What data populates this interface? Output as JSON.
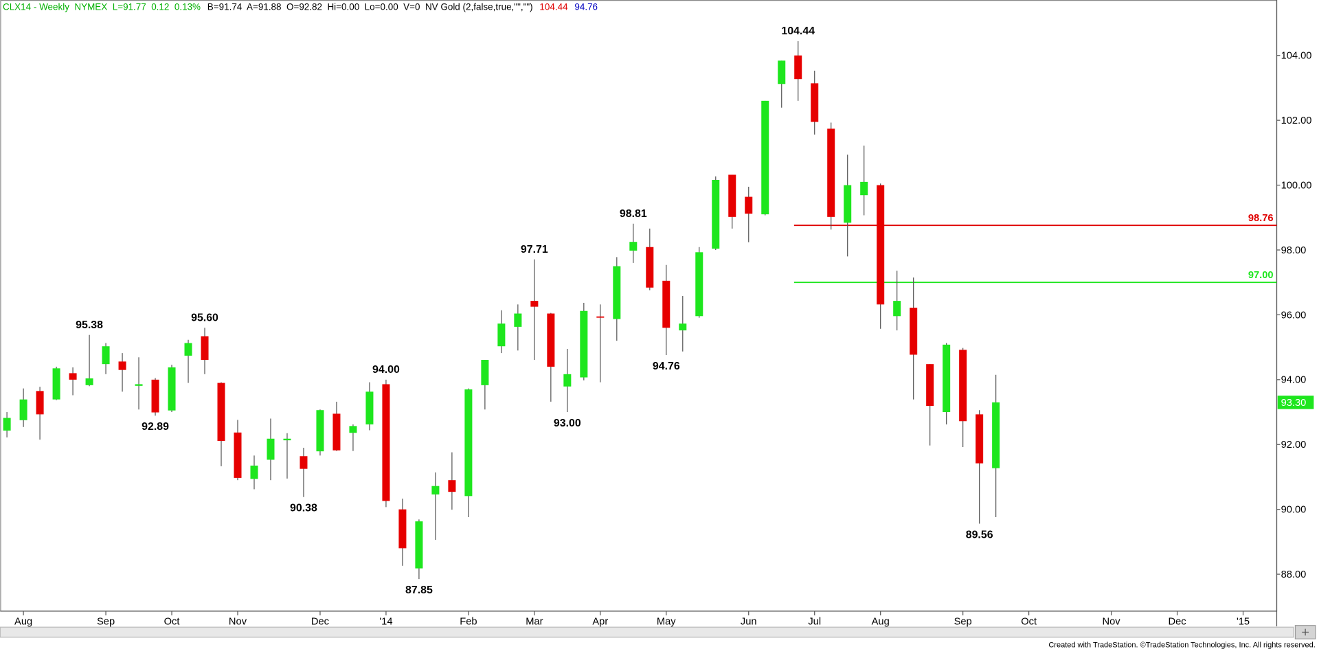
{
  "chart_data": {
    "type": "candlestick",
    "header": [
      {
        "text": "CLX14 - Weekly  NYMEX  L=91.77  0.12  0.13%",
        "color": "#00b000"
      },
      {
        "text": "B=91.74  A=91.88  O=92.82  Hi=0.00  Lo=0.00  V=0  NV Gold (2,false,true,\"\",\"\")",
        "color": "#000000"
      },
      {
        "text": "104.44",
        "color": "#e00000"
      },
      {
        "text": "94.76",
        "color": "#0000c0"
      }
    ],
    "categories": [
      null,
      "Aug",
      null,
      null,
      null,
      null,
      "Sep",
      null,
      null,
      null,
      "Oct",
      null,
      null,
      null,
      "Nov",
      null,
      null,
      null,
      null,
      "Dec",
      null,
      null,
      null,
      "'14",
      null,
      null,
      null,
      null,
      "Feb",
      null,
      null,
      null,
      "Mar",
      null,
      null,
      null,
      "Apr",
      null,
      null,
      null,
      "May",
      null,
      null,
      null,
      null,
      "Jun",
      null,
      null,
      null,
      "Jul",
      null,
      null,
      null,
      "Aug",
      null,
      null,
      null,
      null,
      "Sep",
      null,
      null,
      null,
      "Oct",
      null,
      null,
      null,
      null,
      "Nov",
      null,
      null,
      null,
      "Dec",
      null,
      null,
      null,
      "'15",
      null
    ],
    "open": [
      92.43,
      92.75,
      93.65,
      93.39,
      94.2,
      93.83,
      94.48,
      94.56,
      93.81,
      94.0,
      93.05,
      94.74,
      95.34,
      93.9,
      92.37,
      90.94,
      91.53,
      92.13,
      91.64,
      91.79,
      92.95,
      92.36,
      92.62,
      93.86,
      90.0,
      88.18,
      90.46,
      90.9,
      90.41,
      93.83,
      95.03,
      95.63,
      96.43,
      96.04,
      93.79,
      94.07,
      95.95,
      95.87,
      97.98,
      98.09,
      97.05,
      95.52,
      95.96,
      98.04,
      100.32,
      99.64,
      99.1,
      103.12,
      104.0,
      103.14,
      101.74,
      98.84,
      99.69,
      100.0,
      95.96,
      96.22,
      94.48,
      93.0,
      94.92,
      92.93,
      91.27,
      null,
      null,
      null,
      null,
      null,
      null,
      null,
      null,
      null,
      null,
      null,
      null,
      null,
      null,
      null,
      null
    ],
    "high": [
      93.0,
      93.73,
      93.78,
      94.4,
      94.38,
      95.38,
      95.13,
      94.82,
      94.69,
      94.05,
      94.46,
      95.23,
      95.6,
      93.92,
      92.76,
      91.66,
      92.8,
      92.35,
      91.9,
      93.08,
      93.32,
      92.62,
      93.92,
      94.0,
      90.33,
      89.69,
      91.14,
      91.76,
      93.73,
      94.61,
      96.14,
      96.32,
      97.71,
      96.06,
      94.95,
      96.37,
      96.32,
      97.78,
      98.81,
      98.66,
      97.54,
      96.58,
      98.09,
      100.27,
      100.32,
      99.95,
      102.6,
      103.84,
      104.44,
      103.53,
      101.93,
      100.94,
      101.22,
      100.05,
      97.36,
      97.15,
      94.48,
      95.13,
      94.98,
      93.06,
      94.15,
      null,
      null,
      null,
      null,
      null,
      null,
      null,
      null,
      null,
      null,
      null,
      null,
      null,
      null,
      null,
      null
    ],
    "low": [
      92.22,
      92.54,
      92.15,
      93.37,
      93.52,
      93.8,
      94.17,
      93.63,
      93.08,
      92.89,
      93.0,
      93.9,
      94.17,
      91.33,
      90.9,
      90.62,
      90.9,
      90.95,
      90.38,
      91.66,
      91.8,
      91.8,
      92.44,
      90.07,
      88.26,
      87.85,
      89.06,
      89.99,
      89.76,
      93.08,
      94.82,
      94.9,
      94.61,
      93.32,
      93.0,
      93.98,
      93.92,
      95.2,
      97.6,
      96.76,
      94.76,
      94.87,
      95.91,
      98.0,
      98.66,
      98.24,
      99.07,
      102.39,
      102.6,
      101.56,
      98.63,
      97.8,
      99.07,
      95.57,
      95.52,
      93.39,
      91.97,
      92.62,
      91.92,
      89.56,
      89.76,
      null,
      null,
      null,
      null,
      null,
      null,
      null,
      null,
      null,
      null,
      null,
      null,
      null,
      null,
      null,
      null
    ],
    "close": [
      92.82,
      93.39,
      92.93,
      94.35,
      94.0,
      94.04,
      95.03,
      94.3,
      93.86,
      92.99,
      94.38,
      95.13,
      94.61,
      92.11,
      90.97,
      91.35,
      92.18,
      92.18,
      91.25,
      93.06,
      91.82,
      92.57,
      93.63,
      90.26,
      88.8,
      89.63,
      90.72,
      90.54,
      93.7,
      94.61,
      95.73,
      96.04,
      96.25,
      94.4,
      94.17,
      96.12,
      95.93,
      97.5,
      98.25,
      96.84,
      95.6,
      95.73,
      97.93,
      100.16,
      99.02,
      99.12,
      102.6,
      103.84,
      103.27,
      101.95,
      99.02,
      100.0,
      100.1,
      96.32,
      96.43,
      94.77,
      93.19,
      95.08,
      92.72,
      91.42,
      93.3,
      null,
      null,
      null,
      null,
      null,
      null,
      null,
      null,
      null,
      null,
      null,
      null,
      null,
      null,
      null,
      null
    ],
    "up_color": "#1ee61e",
    "down_color": "#e60000",
    "ylim": [
      86.86,
      105.71
    ],
    "yticks": [
      {
        "value": 88,
        "label": "88.00"
      },
      {
        "value": 90,
        "label": "90.00"
      },
      {
        "value": 92,
        "label": "92.00"
      },
      {
        "value": 94,
        "label": "94.00"
      },
      {
        "value": 96,
        "label": "96.00"
      },
      {
        "value": 98,
        "label": "98.00"
      },
      {
        "value": 100,
        "label": "100.00"
      },
      {
        "value": 102,
        "label": "102.00"
      },
      {
        "value": 104,
        "label": "104.00"
      }
    ],
    "grid": false,
    "annotations": [
      {
        "at": 5,
        "value": 95.38,
        "label": "95.38"
      },
      {
        "at": 9,
        "value": 92.89,
        "label": "92.89"
      },
      {
        "at": 12,
        "value": 95.6,
        "label": "95.60"
      },
      {
        "at": 18,
        "value": 90.38,
        "label": "90.38"
      },
      {
        "at": 23,
        "value": 94,
        "label": "94.00"
      },
      {
        "at": 25,
        "value": 87.85,
        "label": "87.85"
      },
      {
        "at": 32,
        "value": 97.71,
        "label": "97.71"
      },
      {
        "at": 34,
        "value": 93,
        "label": "93.00"
      },
      {
        "at": 38,
        "value": 98.81,
        "label": "98.81"
      },
      {
        "at": 40,
        "value": 94.76,
        "label": "94.76"
      },
      {
        "at": 48,
        "value": 104.44,
        "label": "104.44"
      },
      {
        "at": 59,
        "value": 89.56,
        "label": "89.56"
      }
    ],
    "levels": [
      {
        "value": 98.76,
        "label": "98.76",
        "color": "#e00000",
        "from_index": 48
      },
      {
        "value": 97,
        "label": "97.00",
        "color": "#1ee61e",
        "from_index": 48
      }
    ],
    "last_price": {
      "value": 93.3,
      "label": "93.30",
      "color": "#1ee61e"
    },
    "footer": "Created with TradeStation. ©TradeStation Technologies, Inc. All rights reserved."
  }
}
